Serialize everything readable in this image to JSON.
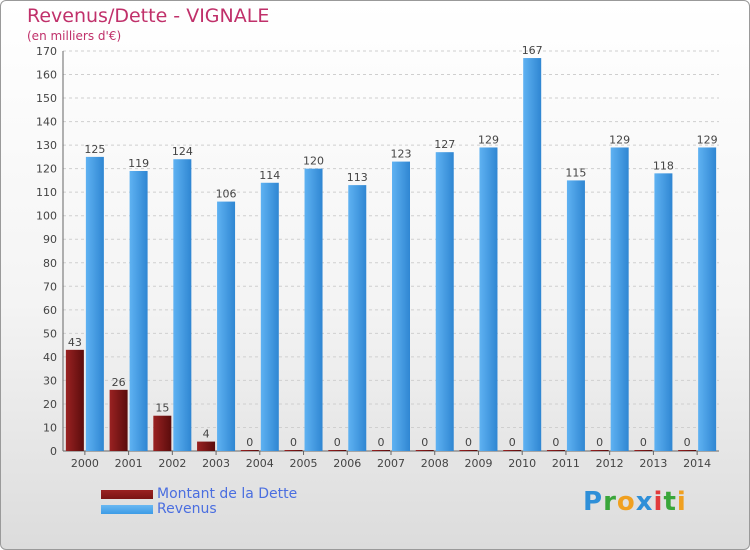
{
  "header": {
    "title": "Revenus/Dette - VIGNALE",
    "subtitle": "(en milliers d'€)"
  },
  "logo": {
    "text": "Proxiti",
    "letters": [
      {
        "ch": "P",
        "color": "#2e8fd8"
      },
      {
        "ch": "r",
        "color": "#3aa63a"
      },
      {
        "ch": "o",
        "color": "#f0a020"
      },
      {
        "ch": "x",
        "color": "#2e8fd8"
      },
      {
        "ch": "i",
        "color": "#e23a3a"
      },
      {
        "ch": "t",
        "color": "#3aa63a"
      },
      {
        "ch": "i",
        "color": "#f0a020"
      }
    ]
  },
  "chart_data": {
    "type": "bar",
    "categories": [
      "2000",
      "2001",
      "2002",
      "2003",
      "2004",
      "2005",
      "2006",
      "2007",
      "2008",
      "2009",
      "2010",
      "2011",
      "2012",
      "2013",
      "2014"
    ],
    "series": [
      {
        "name": "Montant de la Dette",
        "color": "#7a1414",
        "values": [
          43,
          26,
          15,
          4,
          0,
          0,
          0,
          0,
          0,
          0,
          0,
          0,
          0,
          0,
          0
        ]
      },
      {
        "name": "Revenus",
        "color": "#3d9be6",
        "values": [
          125,
          119,
          124,
          106,
          114,
          120,
          113,
          123,
          127,
          129,
          167,
          115,
          129,
          118,
          129
        ]
      }
    ],
    "ylim": [
      0,
      170
    ],
    "yticks": [
      0,
      10,
      20,
      30,
      40,
      50,
      60,
      70,
      80,
      90,
      100,
      110,
      120,
      130,
      140,
      150,
      160,
      170
    ],
    "grid": true,
    "legend": "bottom-left"
  }
}
